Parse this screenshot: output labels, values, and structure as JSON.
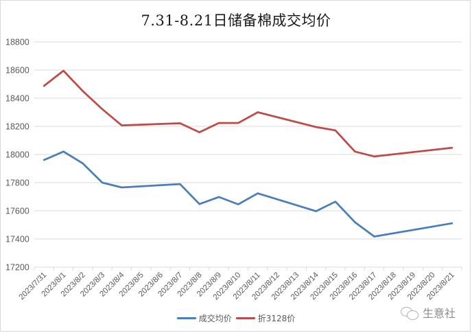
{
  "chart_data": {
    "type": "line",
    "title": "7.31-8.21日储备棉成交均价",
    "xlabel": "",
    "ylabel": "",
    "ylim": [
      17200,
      18800
    ],
    "yticks": [
      17200,
      17400,
      17600,
      17800,
      18000,
      18200,
      18400,
      18600,
      18800
    ],
    "grid": true,
    "legend_position": "bottom",
    "categories": [
      "2023/7/31",
      "2023/8/1",
      "2023/8/2",
      "2023/8/3",
      "2023/8/4",
      "2023/8/5",
      "2023/8/6",
      "2023/8/7",
      "2023/8/8",
      "2023/8/9",
      "2023/8/10",
      "2023/8/11",
      "2023/8/12",
      "2023/8/13",
      "2023/8/14",
      "2023/8/15",
      "2023/8/16",
      "2023/8/17",
      "2023/8/18",
      "2023/8/19",
      "2023/8/20",
      "2023/8/21"
    ],
    "series": [
      {
        "name": "成交均价",
        "color": "#4a7ebb",
        "values": [
          17961,
          18021,
          17936,
          17800,
          17766,
          null,
          null,
          17790,
          17648,
          17698,
          17646,
          17724,
          null,
          null,
          17597,
          17665,
          17519,
          17417,
          null,
          null,
          null,
          17511
        ]
      },
      {
        "name": "折3128价",
        "color": "#be4b48",
        "values": [
          18488,
          18595,
          18450,
          18322,
          18207,
          null,
          null,
          18222,
          18158,
          18224,
          18224,
          18300,
          null,
          null,
          18195,
          18171,
          18021,
          17986,
          null,
          null,
          null,
          18048
        ]
      }
    ],
    "gaps": "connect"
  },
  "watermark": {
    "text": "生意社",
    "icon": "wechat-icon"
  }
}
